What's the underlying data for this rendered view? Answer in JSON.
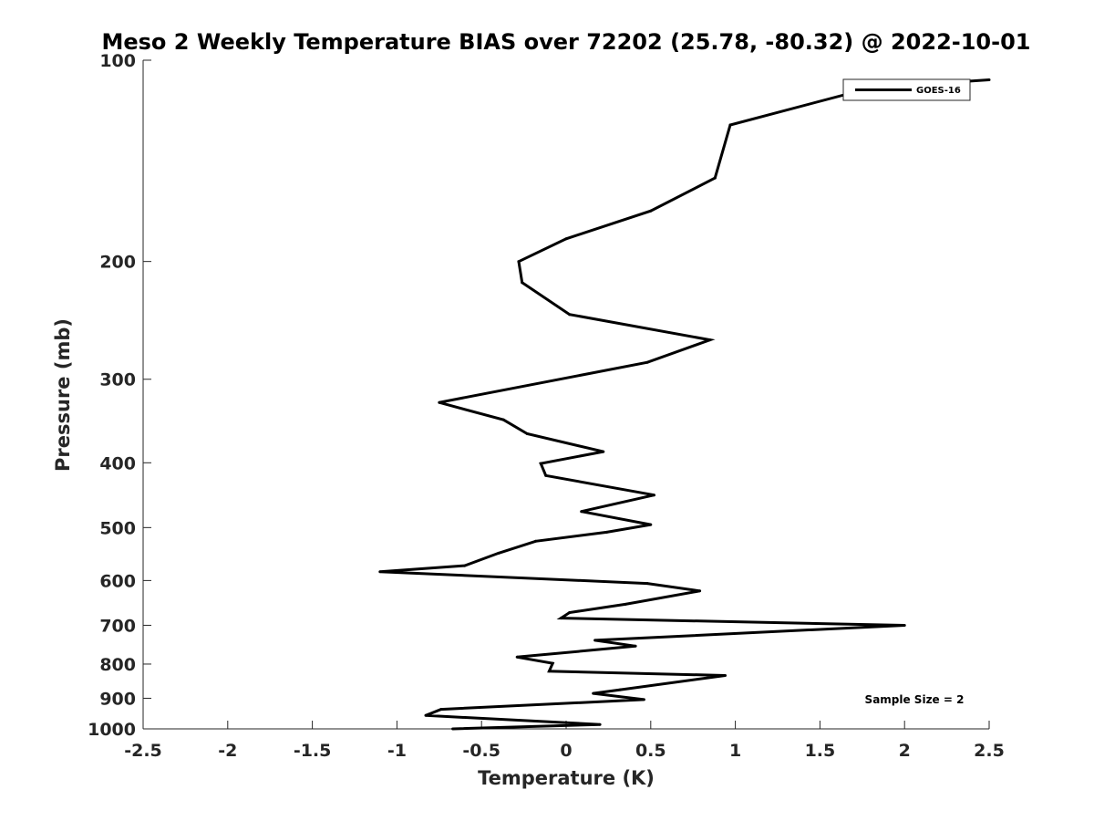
{
  "chart_data": {
    "type": "line",
    "title": "Meso 2 Weekly Temperature BIAS over 72202 (25.78, -80.32) @ 2022-10-01",
    "xlabel": "Temperature (K)",
    "ylabel": "Pressure (mb)",
    "xlim": [
      -2.5,
      2.5
    ],
    "ylim": [
      100,
      1000
    ],
    "y_scale": "log",
    "y_reversed": true,
    "x_ticks": [
      "-2.5",
      "-2",
      "-1.5",
      "-1",
      "-0.5",
      "0",
      "0.5",
      "1",
      "1.5",
      "2",
      "2.5"
    ],
    "y_ticks": [
      "100",
      "200",
      "300",
      "400",
      "500",
      "600",
      "700",
      "800",
      "900",
      "1000"
    ],
    "grid": false,
    "legend_position": "top-right",
    "annotation": "Sample Size = 2",
    "series": [
      {
        "name": "GOES-16",
        "color": "#000000",
        "points": [
          {
            "x": 2.5,
            "y": 107
          },
          {
            "x": 1.8,
            "y": 110
          },
          {
            "x": 0.97,
            "y": 125
          },
          {
            "x": 0.88,
            "y": 150
          },
          {
            "x": 0.5,
            "y": 168
          },
          {
            "x": 0.0,
            "y": 185
          },
          {
            "x": -0.28,
            "y": 200
          },
          {
            "x": -0.26,
            "y": 215
          },
          {
            "x": 0.02,
            "y": 240
          },
          {
            "x": 0.85,
            "y": 262
          },
          {
            "x": 0.48,
            "y": 283
          },
          {
            "x": -0.75,
            "y": 325
          },
          {
            "x": -0.37,
            "y": 345
          },
          {
            "x": -0.23,
            "y": 362
          },
          {
            "x": 0.22,
            "y": 385
          },
          {
            "x": -0.15,
            "y": 401
          },
          {
            "x": -0.12,
            "y": 418
          },
          {
            "x": 0.52,
            "y": 447
          },
          {
            "x": 0.09,
            "y": 473
          },
          {
            "x": 0.5,
            "y": 495
          },
          {
            "x": 0.24,
            "y": 508
          },
          {
            "x": -0.18,
            "y": 524
          },
          {
            "x": -0.4,
            "y": 546
          },
          {
            "x": -0.6,
            "y": 570
          },
          {
            "x": -1.1,
            "y": 582
          },
          {
            "x": 0.48,
            "y": 606
          },
          {
            "x": 0.79,
            "y": 622
          },
          {
            "x": 0.35,
            "y": 651
          },
          {
            "x": 0.02,
            "y": 670
          },
          {
            "x": -0.03,
            "y": 683
          },
          {
            "x": 2.0,
            "y": 700
          },
          {
            "x": 0.17,
            "y": 737
          },
          {
            "x": 0.41,
            "y": 752
          },
          {
            "x": -0.29,
            "y": 781
          },
          {
            "x": -0.08,
            "y": 798
          },
          {
            "x": -0.1,
            "y": 820
          },
          {
            "x": 0.94,
            "y": 832
          },
          {
            "x": 0.32,
            "y": 874
          },
          {
            "x": 0.16,
            "y": 885
          },
          {
            "x": 0.46,
            "y": 904
          },
          {
            "x": -0.74,
            "y": 935
          },
          {
            "x": -0.83,
            "y": 955
          },
          {
            "x": 0.2,
            "y": 985
          },
          {
            "x": -0.67,
            "y": 1000
          }
        ]
      }
    ]
  }
}
